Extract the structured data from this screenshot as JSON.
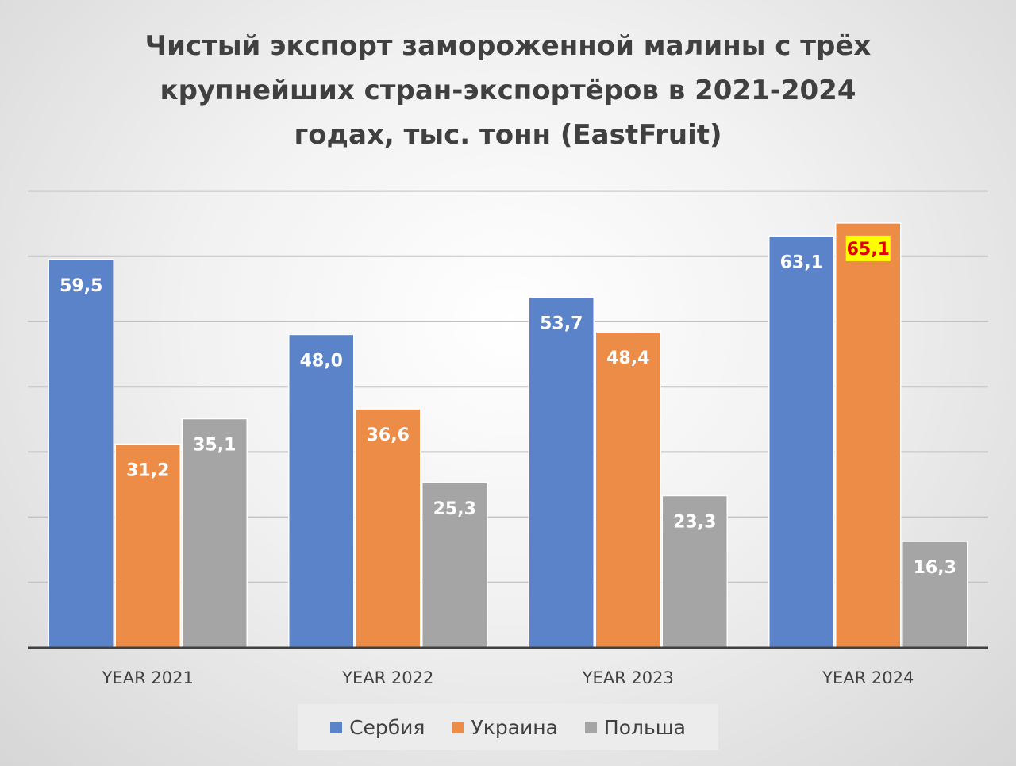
{
  "chart_data": {
    "type": "bar",
    "title_lines": [
      "Чистый экспорт замороженной малины с трёх",
      "крупнейших стран-экспортёров в 2021-2024",
      "годах, тыс. тонн (EastFruit)"
    ],
    "categories": [
      "YEAR 2021",
      "YEAR 2022",
      "YEAR 2023",
      "YEAR 2024"
    ],
    "series": [
      {
        "name": "Сербия",
        "color": "#5b83c9",
        "values": [
          59.5,
          48.0,
          53.7,
          63.1
        ],
        "labels": [
          "59,5",
          "48,0",
          "53,7",
          "63,1"
        ]
      },
      {
        "name": "Украина",
        "color": "#ed8c47",
        "values": [
          31.2,
          36.6,
          48.4,
          65.1
        ],
        "labels": [
          "31,2",
          "36,6",
          "48,4",
          "65,1"
        ]
      },
      {
        "name": "Польша",
        "color": "#a5a5a5",
        "values": [
          35.1,
          25.3,
          23.3,
          16.3
        ],
        "labels": [
          "35,1",
          "25,3",
          "23,3",
          "16,3"
        ]
      }
    ],
    "highlight": {
      "series": 1,
      "category": 3,
      "background": "#ffff00",
      "text_color": "#e00000"
    },
    "ylim": [
      0,
      70
    ],
    "grid": true,
    "legend_position": "bottom"
  }
}
